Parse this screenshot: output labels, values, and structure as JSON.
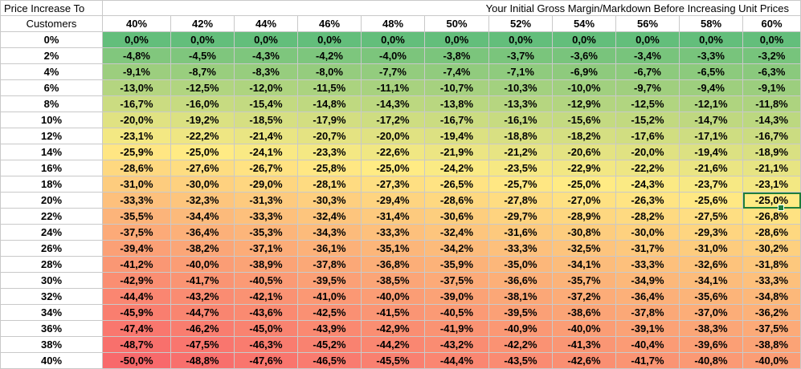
{
  "sheet": {
    "corner_line1": "Price Increase To",
    "corner_line2": "Customers",
    "title": "Your Initial Gross Margin/Markdown Before Increasing Unit Prices",
    "columns": [
      "40%",
      "42%",
      "44%",
      "46%",
      "48%",
      "50%",
      "52%",
      "54%",
      "56%",
      "58%",
      "60%"
    ],
    "rows": [
      {
        "label": "0%",
        "values": [
          "0,0%",
          "0,0%",
          "0,0%",
          "0,0%",
          "0,0%",
          "0,0%",
          "0,0%",
          "0,0%",
          "0,0%",
          "0,0%",
          "0,0%"
        ]
      },
      {
        "label": "2%",
        "values": [
          "-4,8%",
          "-4,5%",
          "-4,3%",
          "-4,2%",
          "-4,0%",
          "-3,8%",
          "-3,7%",
          "-3,6%",
          "-3,4%",
          "-3,3%",
          "-3,2%"
        ]
      },
      {
        "label": "4%",
        "values": [
          "-9,1%",
          "-8,7%",
          "-8,3%",
          "-8,0%",
          "-7,7%",
          "-7,4%",
          "-7,1%",
          "-6,9%",
          "-6,7%",
          "-6,5%",
          "-6,3%"
        ]
      },
      {
        "label": "6%",
        "values": [
          "-13,0%",
          "-12,5%",
          "-12,0%",
          "-11,5%",
          "-11,1%",
          "-10,7%",
          "-10,3%",
          "-10,0%",
          "-9,7%",
          "-9,4%",
          "-9,1%"
        ]
      },
      {
        "label": "8%",
        "values": [
          "-16,7%",
          "-16,0%",
          "-15,4%",
          "-14,8%",
          "-14,3%",
          "-13,8%",
          "-13,3%",
          "-12,9%",
          "-12,5%",
          "-12,1%",
          "-11,8%"
        ]
      },
      {
        "label": "10%",
        "values": [
          "-20,0%",
          "-19,2%",
          "-18,5%",
          "-17,9%",
          "-17,2%",
          "-16,7%",
          "-16,1%",
          "-15,6%",
          "-15,2%",
          "-14,7%",
          "-14,3%"
        ]
      },
      {
        "label": "12%",
        "values": [
          "-23,1%",
          "-22,2%",
          "-21,4%",
          "-20,7%",
          "-20,0%",
          "-19,4%",
          "-18,8%",
          "-18,2%",
          "-17,6%",
          "-17,1%",
          "-16,7%"
        ]
      },
      {
        "label": "14%",
        "values": [
          "-25,9%",
          "-25,0%",
          "-24,1%",
          "-23,3%",
          "-22,6%",
          "-21,9%",
          "-21,2%",
          "-20,6%",
          "-20,0%",
          "-19,4%",
          "-18,9%"
        ]
      },
      {
        "label": "16%",
        "values": [
          "-28,6%",
          "-27,6%",
          "-26,7%",
          "-25,8%",
          "-25,0%",
          "-24,2%",
          "-23,5%",
          "-22,9%",
          "-22,2%",
          "-21,6%",
          "-21,1%"
        ]
      },
      {
        "label": "18%",
        "values": [
          "-31,0%",
          "-30,0%",
          "-29,0%",
          "-28,1%",
          "-27,3%",
          "-26,5%",
          "-25,7%",
          "-25,0%",
          "-24,3%",
          "-23,7%",
          "-23,1%"
        ]
      },
      {
        "label": "20%",
        "values": [
          "-33,3%",
          "-32,3%",
          "-31,3%",
          "-30,3%",
          "-29,4%",
          "-28,6%",
          "-27,8%",
          "-27,0%",
          "-26,3%",
          "-25,6%",
          "-25,0%"
        ]
      },
      {
        "label": "22%",
        "values": [
          "-35,5%",
          "-34,4%",
          "-33,3%",
          "-32,4%",
          "-31,4%",
          "-30,6%",
          "-29,7%",
          "-28,9%",
          "-28,2%",
          "-27,5%",
          "-26,8%"
        ]
      },
      {
        "label": "24%",
        "values": [
          "-37,5%",
          "-36,4%",
          "-35,3%",
          "-34,3%",
          "-33,3%",
          "-32,4%",
          "-31,6%",
          "-30,8%",
          "-30,0%",
          "-29,3%",
          "-28,6%"
        ]
      },
      {
        "label": "26%",
        "values": [
          "-39,4%",
          "-38,2%",
          "-37,1%",
          "-36,1%",
          "-35,1%",
          "-34,2%",
          "-33,3%",
          "-32,5%",
          "-31,7%",
          "-31,0%",
          "-30,2%"
        ]
      },
      {
        "label": "28%",
        "values": [
          "-41,2%",
          "-40,0%",
          "-38,9%",
          "-37,8%",
          "-36,8%",
          "-35,9%",
          "-35,0%",
          "-34,1%",
          "-33,3%",
          "-32,6%",
          "-31,8%"
        ]
      },
      {
        "label": "30%",
        "values": [
          "-42,9%",
          "-41,7%",
          "-40,5%",
          "-39,5%",
          "-38,5%",
          "-37,5%",
          "-36,6%",
          "-35,7%",
          "-34,9%",
          "-34,1%",
          "-33,3%"
        ]
      },
      {
        "label": "32%",
        "values": [
          "-44,4%",
          "-43,2%",
          "-42,1%",
          "-41,0%",
          "-40,0%",
          "-39,0%",
          "-38,1%",
          "-37,2%",
          "-36,4%",
          "-35,6%",
          "-34,8%"
        ]
      },
      {
        "label": "34%",
        "values": [
          "-45,9%",
          "-44,7%",
          "-43,6%",
          "-42,5%",
          "-41,5%",
          "-40,5%",
          "-39,5%",
          "-38,6%",
          "-37,8%",
          "-37,0%",
          "-36,2%"
        ]
      },
      {
        "label": "36%",
        "values": [
          "-47,4%",
          "-46,2%",
          "-45,0%",
          "-43,9%",
          "-42,9%",
          "-41,9%",
          "-40,9%",
          "-40,0%",
          "-39,1%",
          "-38,3%",
          "-37,5%"
        ]
      },
      {
        "label": "38%",
        "values": [
          "-48,7%",
          "-47,5%",
          "-46,3%",
          "-45,2%",
          "-44,2%",
          "-43,2%",
          "-42,2%",
          "-41,3%",
          "-40,4%",
          "-39,6%",
          "-38,8%"
        ]
      },
      {
        "label": "40%",
        "values": [
          "-50,0%",
          "-48,8%",
          "-47,6%",
          "-46,5%",
          "-45,5%",
          "-44,4%",
          "-43,5%",
          "-42,6%",
          "-41,7%",
          "-40,8%",
          "-40,0%"
        ]
      }
    ],
    "selected_cell": {
      "row": 10,
      "col": 10
    },
    "colors": {
      "scale_high": "#63be7b",
      "scale_mid": "#ffeb84",
      "scale_low": "#f8696b",
      "gridline": "#c9c9c9",
      "selection": "#1f7d3b"
    }
  }
}
